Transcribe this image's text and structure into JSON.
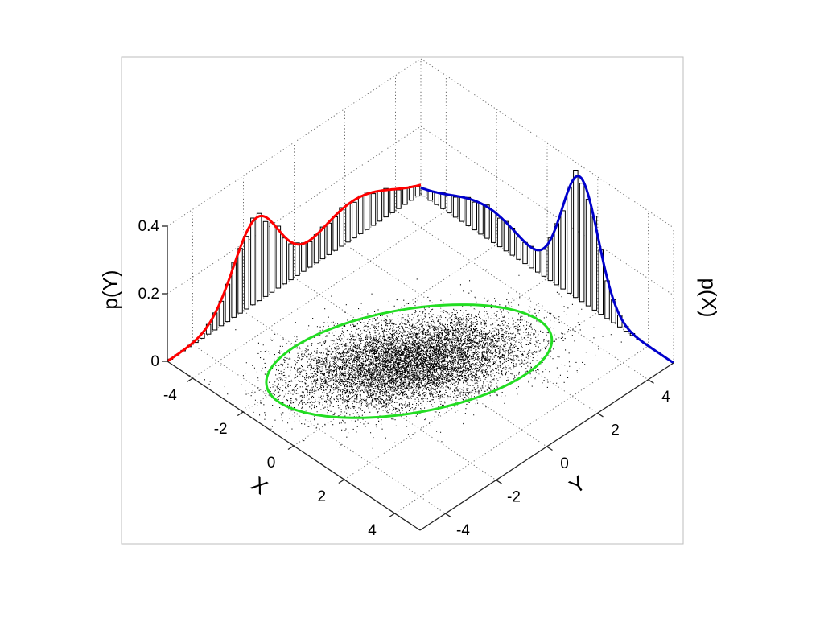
{
  "chart_data": {
    "type": "scatter",
    "view": "3d-isometric",
    "x_axis": {
      "label": "X",
      "ticks": [
        -4,
        -2,
        0,
        2,
        4
      ],
      "range": [
        -5,
        5
      ]
    },
    "y_axis": {
      "label": "Y",
      "ticks": [
        -4,
        -2,
        0,
        2,
        4
      ],
      "range": [
        -5,
        5
      ]
    },
    "z_axis": {
      "ticks": [
        "0",
        "0.2",
        "0.4"
      ],
      "tick_values": [
        0,
        0.2,
        0.4
      ],
      "range": [
        0,
        0.4
      ]
    },
    "side_labels": {
      "left": "p(Y)",
      "right": "p(X)"
    },
    "grid": true,
    "scatter": {
      "center": [
        -0.2,
        -0.2
      ],
      "cov": [
        [
          1.2,
          0.85
        ],
        [
          0.85,
          2.4
        ]
      ],
      "point_count": 9000
    },
    "ellipse": {
      "center": [
        -0.25,
        -0.2
      ],
      "color": "#22dd22"
    },
    "marginals": [
      {
        "variable": "Y",
        "color": "#ff0000",
        "components": [
          {
            "weight": 0.55,
            "mean": -1.5,
            "sd": 0.9
          },
          {
            "weight": 0.45,
            "mean": 2.3,
            "sd": 1.6
          }
        ]
      },
      {
        "variable": "X",
        "color": "#0000cc",
        "components": [
          {
            "weight": 0.35,
            "mean": -2.3,
            "sd": 1.5
          },
          {
            "weight": 0.65,
            "mean": 1.3,
            "sd": 0.72
          }
        ]
      }
    ]
  }
}
